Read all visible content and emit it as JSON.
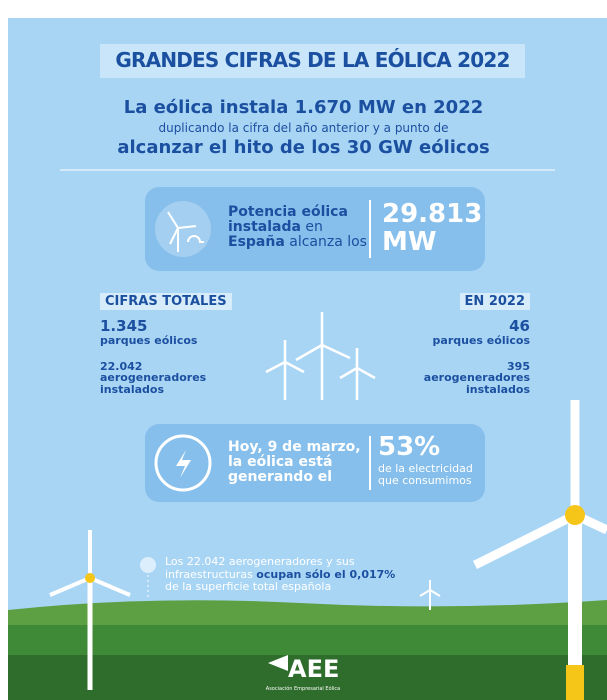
{
  "header": {
    "title": "GRANDES CIFRAS DE LA EÓLICA 2022"
  },
  "headline": {
    "line1": "La eólica instala 1.670 MW en 2022",
    "line2": "duplicando la cifra del año anterior y a punto de",
    "line3": "alcanzar el hito de los 30 GW eólicos"
  },
  "capacity": {
    "bold_1": "Potencia eólica instalada",
    "regular_1": "en",
    "bold_2": "España",
    "regular_2": "alcanza los",
    "value": "29.813",
    "unit": "MW"
  },
  "totals": {
    "label": "CIFRAS TOTALES",
    "parks_value": "1.345",
    "parks_label": "parques eólicos",
    "turbines_value": "22.042",
    "turbines_label": "aerogeneradores instalados"
  },
  "year": {
    "label": "EN 2022",
    "parks_value": "46",
    "parks_label": "parques eólicos",
    "turbines_value": "395",
    "turbines_label": "aerogeneradores instalados"
  },
  "today": {
    "text": "Hoy, 9 de marzo, la eólica está generando el",
    "value": "53%",
    "caption": "de la electricidad que consumimos"
  },
  "note": {
    "regular_1": "Los 22.042 aerogeneradores y sus infraestructuras",
    "bold": "ocupan sólo el 0,017%",
    "regular_2": "de la superficie total española"
  },
  "logo": {
    "name": "AEE",
    "subtitle": "Asociación Empresarial Eólica"
  }
}
